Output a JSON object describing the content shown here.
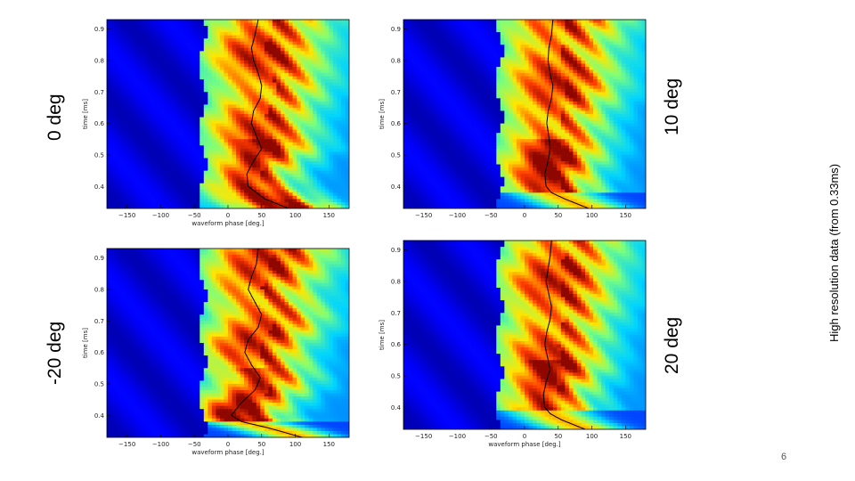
{
  "slide": {
    "page_number": "6",
    "side_note": "High resolution data (from 0.33ms)"
  },
  "colormap": [
    "#00007f",
    "#0000ff",
    "#00d4ff",
    "#7dff7a",
    "#ffe600",
    "#ff3b00",
    "#7f0000"
  ],
  "chart_data": [
    {
      "type": "heatmap",
      "panel_label": "0 deg",
      "xlabel": "waveform phase [deg.]",
      "ylabel": "time [ms]",
      "xlim": [
        -180,
        180
      ],
      "ylim": [
        0.33,
        0.93
      ],
      "xticks": [
        -150,
        -100,
        -50,
        0,
        50,
        100,
        150
      ],
      "yticks": [
        0.4,
        0.5,
        0.6,
        0.7,
        0.8,
        0.9
      ],
      "black_line": {
        "t": [
          0.33,
          0.36,
          0.4,
          0.44,
          0.48,
          0.52,
          0.56,
          0.6,
          0.64,
          0.68,
          0.72,
          0.76,
          0.8,
          0.84,
          0.88,
          0.93
        ],
        "phase": [
          90,
          55,
          30,
          28,
          38,
          50,
          42,
          35,
          38,
          48,
          50,
          45,
          38,
          35,
          40,
          45
        ]
      },
      "step_at_ms": null
    },
    {
      "type": "heatmap",
      "panel_label": "10 deg",
      "xlabel": "",
      "ylabel": "time [ms]",
      "xlim": [
        -180,
        180
      ],
      "ylim": [
        0.33,
        0.93
      ],
      "xticks": [
        -150,
        -100,
        -50,
        0,
        50,
        100,
        150
      ],
      "yticks": [
        0.4,
        0.5,
        0.6,
        0.7,
        0.8,
        0.9
      ],
      "black_line": {
        "t": [
          0.33,
          0.36,
          0.38,
          0.4,
          0.44,
          0.48,
          0.52,
          0.56,
          0.6,
          0.64,
          0.68,
          0.72,
          0.76,
          0.8,
          0.84,
          0.88,
          0.93
        ],
        "phase": [
          95,
          60,
          40,
          32,
          30,
          35,
          38,
          36,
          33,
          35,
          40,
          42,
          38,
          35,
          36,
          40,
          42
        ]
      },
      "step_at_ms": 0.38
    },
    {
      "type": "heatmap",
      "panel_label": "-20 deg",
      "xlabel": "waveform phase [deg.]",
      "ylabel": "time [ms]",
      "xlim": [
        -180,
        180
      ],
      "ylim": [
        0.33,
        0.93
      ],
      "xticks": [
        -150,
        -100,
        -50,
        0,
        50,
        100,
        150
      ],
      "yticks": [
        0.4,
        0.5,
        0.6,
        0.7,
        0.8,
        0.9
      ],
      "black_line": {
        "t": [
          0.33,
          0.36,
          0.38,
          0.4,
          0.44,
          0.48,
          0.52,
          0.56,
          0.6,
          0.64,
          0.68,
          0.72,
          0.76,
          0.8,
          0.84,
          0.88,
          0.93
        ],
        "phase": [
          110,
          60,
          20,
          5,
          20,
          40,
          48,
          35,
          25,
          30,
          45,
          50,
          40,
          30,
          35,
          42,
          45
        ]
      },
      "step_at_ms": 0.38
    },
    {
      "type": "heatmap",
      "panel_label": "20 deg",
      "xlabel": "waveform phase [deg.]",
      "ylabel": "time [ms]",
      "xlim": [
        -180,
        180
      ],
      "ylim": [
        0.33,
        0.93
      ],
      "xticks": [
        -150,
        -100,
        -50,
        0,
        50,
        100,
        150
      ],
      "yticks": [
        0.4,
        0.5,
        0.6,
        0.7,
        0.8,
        0.9
      ],
      "black_line": {
        "t": [
          0.33,
          0.36,
          0.38,
          0.4,
          0.44,
          0.48,
          0.52,
          0.56,
          0.6,
          0.64,
          0.68,
          0.72,
          0.76,
          0.8,
          0.84,
          0.88,
          0.93
        ],
        "phase": [
          90,
          55,
          38,
          30,
          28,
          32,
          38,
          34,
          30,
          33,
          38,
          40,
          36,
          32,
          35,
          38,
          40
        ]
      },
      "step_at_ms": 0.39
    }
  ]
}
